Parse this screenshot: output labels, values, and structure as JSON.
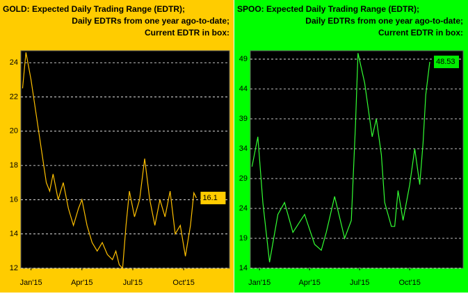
{
  "chart_data": [
    {
      "type": "line",
      "title_lines": [
        "GOLD:  Expected Daily Trading Range (EDTR);",
        "Daily EDTRs from one year ago-to-date;",
        "Current EDTR in box:"
      ],
      "x": [
        -0.5,
        -0.3,
        0,
        0.3,
        0.6,
        0.9,
        1.1,
        1.3,
        1.6,
        1.9,
        2.2,
        2.5,
        2.8,
        3.0,
        3.3,
        3.6,
        3.9,
        4.2,
        4.5,
        4.8,
        5.0,
        5.2,
        5.4,
        5.6,
        5.8,
        6.1,
        6.4,
        6.7,
        7.0,
        7.3,
        7.6,
        7.9,
        8.2,
        8.5,
        8.8,
        9.1,
        9.4,
        9.6,
        9.75
      ],
      "series": [
        {
          "name": "GOLD",
          "color": "#ffc000",
          "values": [
            22.5,
            24.6,
            23,
            21,
            19,
            17,
            16.5,
            17.5,
            16,
            17,
            15.5,
            14.5,
            15.5,
            16,
            14.5,
            13.5,
            13,
            13.5,
            12.8,
            12.5,
            13,
            12.2,
            12,
            14.5,
            16.5,
            15,
            16,
            18.4,
            16,
            14.5,
            16,
            15,
            16.5,
            14,
            14.5,
            12.7,
            14.5,
            16.4,
            16.1
          ]
        }
      ],
      "current_label": "16.1",
      "xlim": [
        -0.6,
        11.7
      ],
      "xticks": [
        {
          "value": 0,
          "label": "Jan'15"
        },
        {
          "value": 3,
          "label": "Apr'15"
        },
        {
          "value": 6,
          "label": "Jul'15"
        },
        {
          "value": 9,
          "label": "Oct'15"
        }
      ],
      "ylim": [
        12,
        24.7
      ],
      "yticks": [
        12,
        14,
        16,
        18,
        20,
        22,
        24
      ],
      "grid": true,
      "background": "#ffcc00",
      "box_color": "#ffcc00"
    },
    {
      "type": "line",
      "title_lines": [
        "SPOO:  Expected Daily Trading Range (EDTR);",
        "Daily EDTRs from one year ago-to-date;",
        "Current EDTR in box:"
      ],
      "x": [
        -0.45,
        -0.1,
        0.2,
        0.6,
        1.1,
        1.5,
        2.0,
        2.7,
        3.3,
        3.7,
        4.0,
        4.5,
        5.1,
        5.5,
        5.75,
        5.9,
        6.3,
        6.75,
        7.0,
        7.3,
        7.5,
        7.9,
        8.1,
        8.3,
        8.6,
        9.0,
        9.3,
        9.6,
        9.8,
        9.96,
        10.2
      ],
      "series": [
        {
          "name": "SPOO",
          "color": "#33ff33",
          "values": [
            31,
            36,
            25,
            15,
            23,
            25,
            20,
            23,
            18,
            17,
            20,
            26,
            19,
            22,
            38,
            50,
            45,
            36,
            39,
            33,
            25,
            21,
            21,
            27,
            22,
            28,
            34,
            28,
            35,
            43,
            48.53
          ]
        }
      ],
      "current_label": "48.53",
      "xlim": [
        -0.55,
        12.2
      ],
      "xticks": [
        {
          "value": 0,
          "label": "Jan'15"
        },
        {
          "value": 3,
          "label": "Apr'15"
        },
        {
          "value": 6,
          "label": "Jul'15"
        },
        {
          "value": 9,
          "label": "Oct'15"
        }
      ],
      "ylim": [
        14,
        50.4
      ],
      "yticks": [
        14,
        19,
        24,
        29,
        34,
        39,
        44,
        49
      ],
      "grid": true,
      "background": "#00ff00",
      "box_color": "#00ee00"
    }
  ]
}
